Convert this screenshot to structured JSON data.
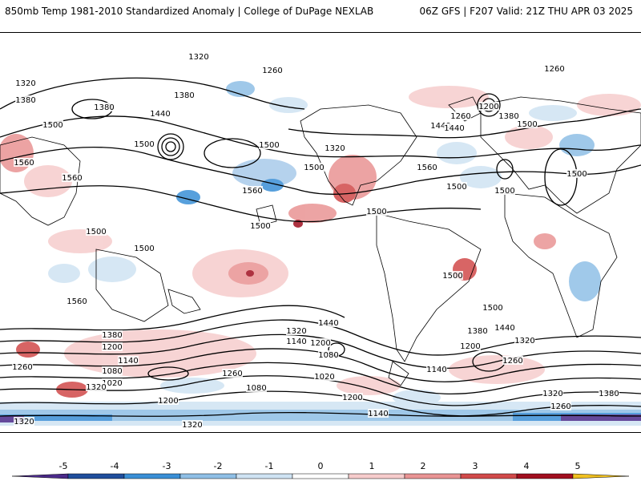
{
  "header": {
    "left_title": "850mb Temp 1981-2010 Standardized Anomaly | College of DuPage NEXLAB",
    "right_title": "06Z GFS | F207 Valid: 21Z THU APR 03 2025"
  },
  "colorbar": {
    "ticks": [
      "-5",
      "-4",
      "-3",
      "-2",
      "-1",
      "0",
      "1",
      "2",
      "3",
      "4",
      "5"
    ],
    "colors": [
      "#4b2a8a",
      "#1f4e9c",
      "#3a8fd6",
      "#8fbfe6",
      "#cfe3f3",
      "#ffffff",
      "#f6cccc",
      "#e99494",
      "#d14a4a",
      "#a10f1f",
      "#f0c020"
    ]
  },
  "map": {
    "contour_labels": [
      "1320",
      "1260",
      "1260",
      "1320",
      "1380",
      "1380",
      "1440",
      "1500",
      "1500",
      "1440",
      "1560",
      "1320",
      "1380",
      "1500",
      "1500",
      "1560",
      "1500",
      "1560",
      "1500",
      "1560",
      "1500",
      "1500",
      "1260",
      "1200",
      "1380",
      "1440",
      "1500",
      "1500",
      "1500",
      "1500",
      "1560",
      "1500",
      "1500",
      "1440",
      "1380",
      "1320",
      "1200",
      "1140",
      "1080",
      "1020",
      "1260",
      "1320",
      "1200",
      "1140",
      "1080",
      "1020",
      "1320",
      "1260",
      "1200",
      "1140",
      "1380",
      "1440",
      "1320",
      "1200",
      "1080",
      "1260",
      "1140",
      "1200",
      "1320",
      "1380",
      "1260",
      "1320"
    ]
  }
}
